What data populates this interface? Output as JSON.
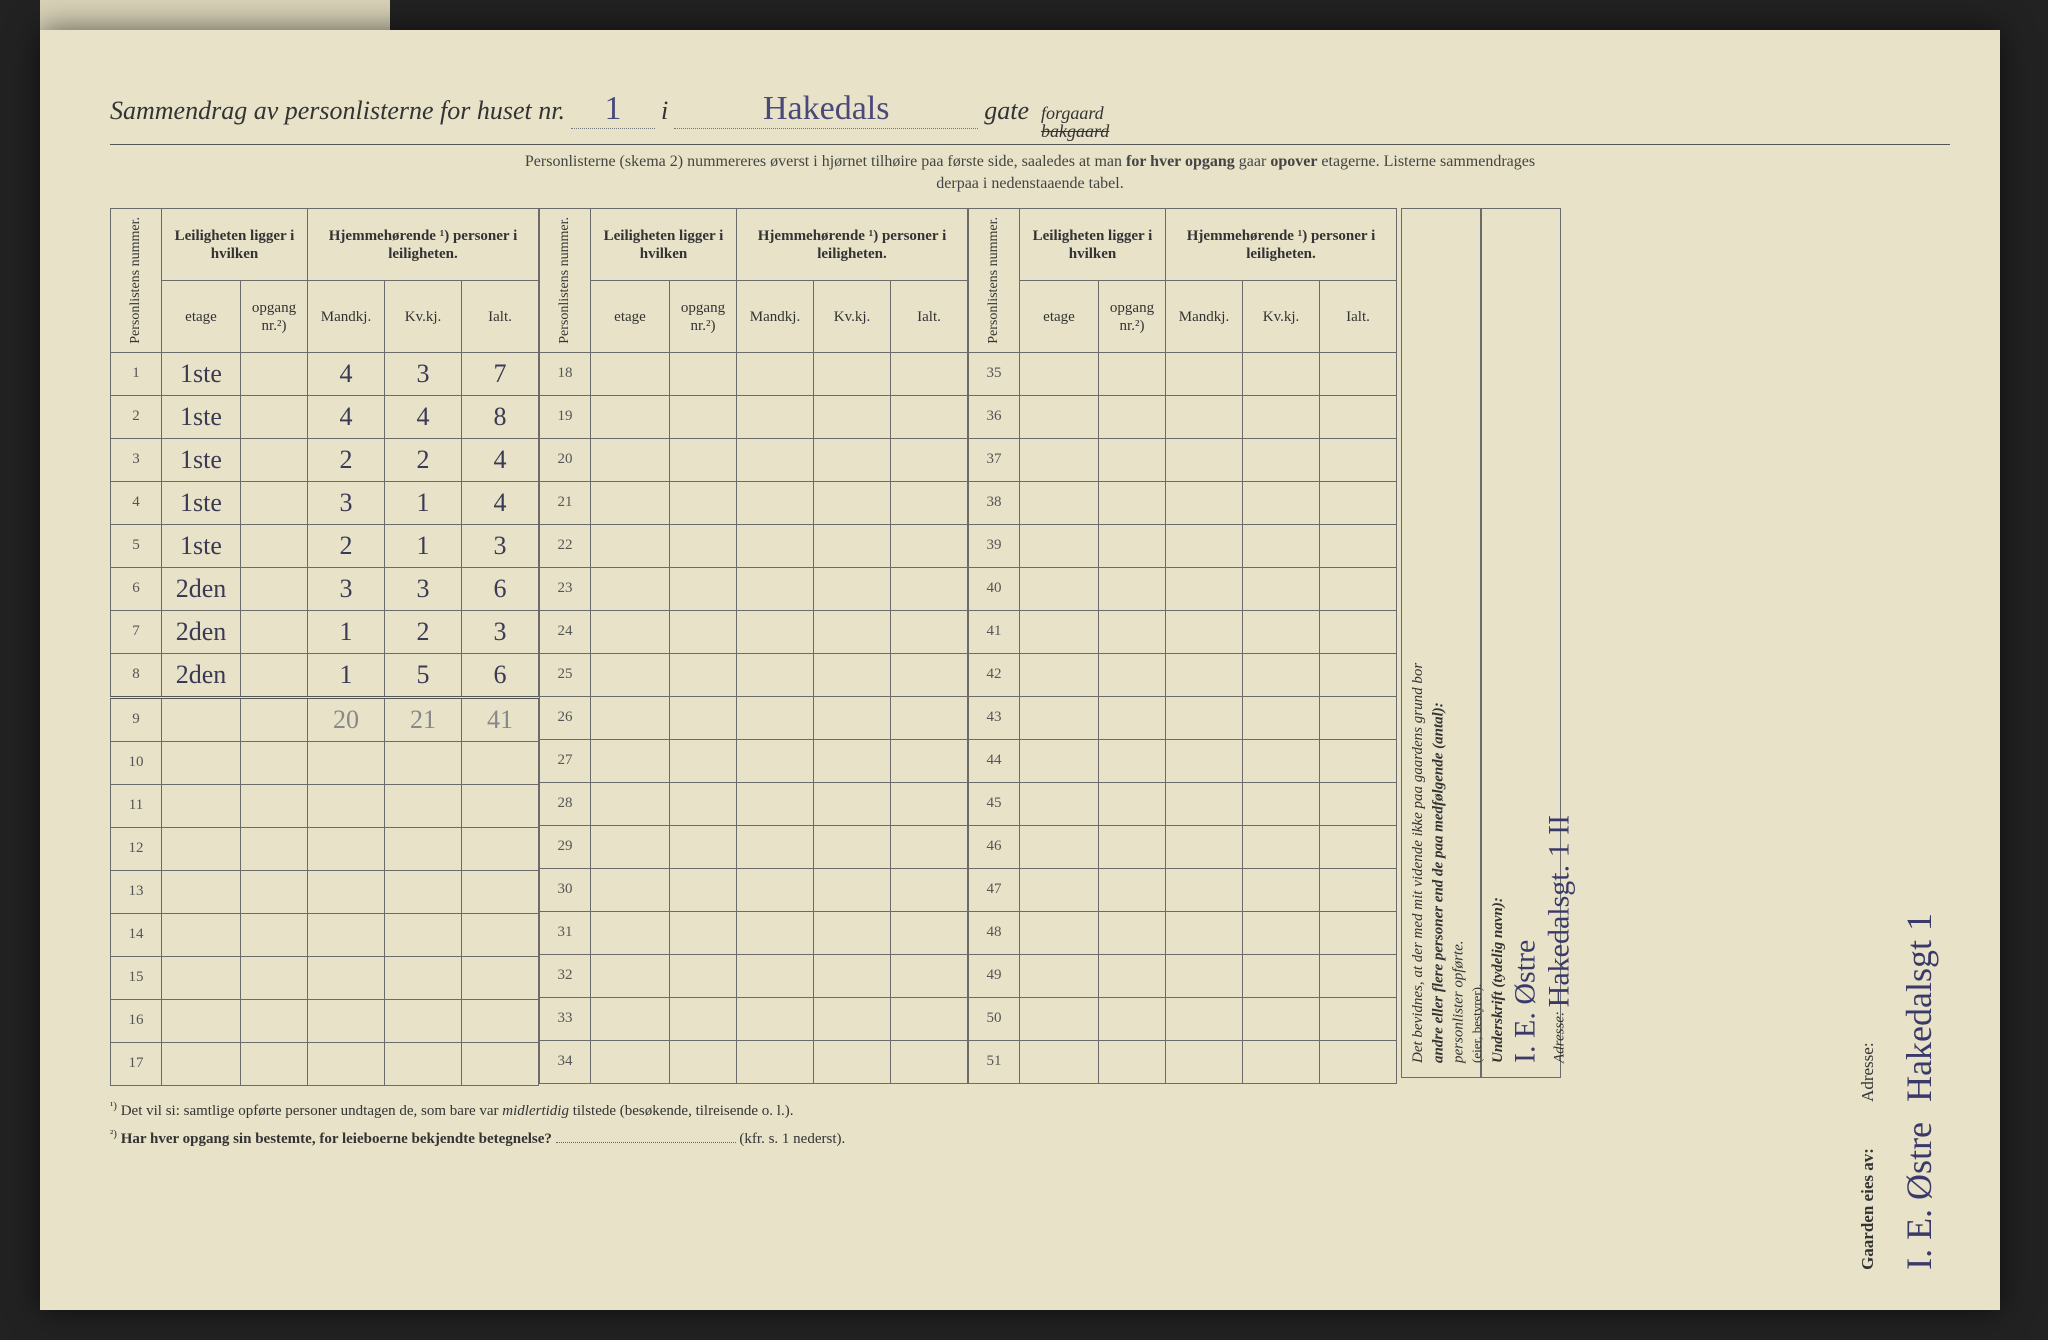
{
  "header": {
    "title_prefix": "Sammendrag av personlisterne for huset nr.",
    "house_nr": "1",
    "sep_i": "i",
    "street": "Hakedals",
    "gate_label": "gate",
    "forgaard": "forgaard",
    "bakgaard": "bakgaard",
    "subtitle_a": "Personlisterne (skema 2) nummereres øverst i hjørnet tilhøire paa første side, saaledes at man ",
    "subtitle_b": "for hver opgang",
    "subtitle_c": " gaar ",
    "subtitle_d": "opover",
    "subtitle_e": " etagerne.   Listerne sammendrages",
    "subtitle_f": "derpaa i nedenstaaende tabel."
  },
  "table": {
    "col_personlist": "Personlistens nummer.",
    "grp_leilighet": "Leiligheten ligger i hvilken",
    "grp_hjemme": "Hjemmehørende ¹) personer i leiligheten.",
    "col_etage": "etage",
    "col_opgang": "opgang nr.²)",
    "col_mandkj": "Mandkj.",
    "col_kvkj": "Kv.kj.",
    "col_ialt": "Ialt.",
    "rows_block1": [
      {
        "n": "1",
        "etage": "1ste",
        "opg": "",
        "m": "4",
        "k": "3",
        "i": "7"
      },
      {
        "n": "2",
        "etage": "1ste",
        "opg": "",
        "m": "4",
        "k": "4",
        "i": "8"
      },
      {
        "n": "3",
        "etage": "1ste",
        "opg": "",
        "m": "2",
        "k": "2",
        "i": "4"
      },
      {
        "n": "4",
        "etage": "1ste",
        "opg": "",
        "m": "3",
        "k": "1",
        "i": "4"
      },
      {
        "n": "5",
        "etage": "1ste",
        "opg": "",
        "m": "2",
        "k": "1",
        "i": "3"
      },
      {
        "n": "6",
        "etage": "2den",
        "opg": "",
        "m": "3",
        "k": "3",
        "i": "6"
      },
      {
        "n": "7",
        "etage": "2den",
        "opg": "",
        "m": "1",
        "k": "2",
        "i": "3"
      },
      {
        "n": "8",
        "etage": "2den",
        "opg": "",
        "m": "1",
        "k": "5",
        "i": "6"
      }
    ],
    "totals": {
      "m": "20",
      "k": "21",
      "i": "41"
    },
    "empty_block1": [
      "9",
      "10",
      "11",
      "12",
      "13",
      "14",
      "15",
      "16",
      "17"
    ],
    "nums_block2": [
      "18",
      "19",
      "20",
      "21",
      "22",
      "23",
      "24",
      "25",
      "26",
      "27",
      "28",
      "29",
      "30",
      "31",
      "32",
      "33",
      "34"
    ],
    "nums_block3": [
      "35",
      "36",
      "37",
      "38",
      "39",
      "40",
      "41",
      "42",
      "43",
      "44",
      "45",
      "46",
      "47",
      "48",
      "49",
      "50",
      "51"
    ]
  },
  "footnotes": {
    "fn1_sup": "¹)",
    "fn1": "Det vil si: samtlige opførte personer undtagen de, som bare var ",
    "fn1_i": "midlertidig",
    "fn1_b": " tilstede (besøkende, tilreisende o. l.).",
    "fn2_sup": "²)",
    "fn2_bold": "Har hver opgang sin bestemte, for leieboerne bekjendte betegnelse?",
    "fn2_tail": "(kfr. s. 1 nederst)."
  },
  "rightpanel": {
    "attest_a": "Det bevidnes, at der med mit vidende ikke paa gaardens grund bor",
    "attest_b": "andre eller flere personer end de paa medfølgende (antal):",
    "attest_c": "personlister opførte.",
    "underskrift_lbl": "Underskrift (tydelig navn):",
    "adresse_lbl": "Adresse:",
    "eier_bestyrer": "(eier, bestyrer).",
    "sig_name": "I. E. Østre",
    "sig_addr": "Hakedalsgt. 1 II"
  },
  "owner": {
    "lbl": "Gaarden eies av:",
    "name": "I. E. Østre",
    "adresse_lbl": "Adresse:",
    "addr": "Hakedalsgt 1"
  },
  "style": {
    "paper_bg": "#e8e2c8",
    "ink": "#333333",
    "hand_ink": "#3a3a6a",
    "pencil": "#888888",
    "rule": "#6b6b6b"
  }
}
